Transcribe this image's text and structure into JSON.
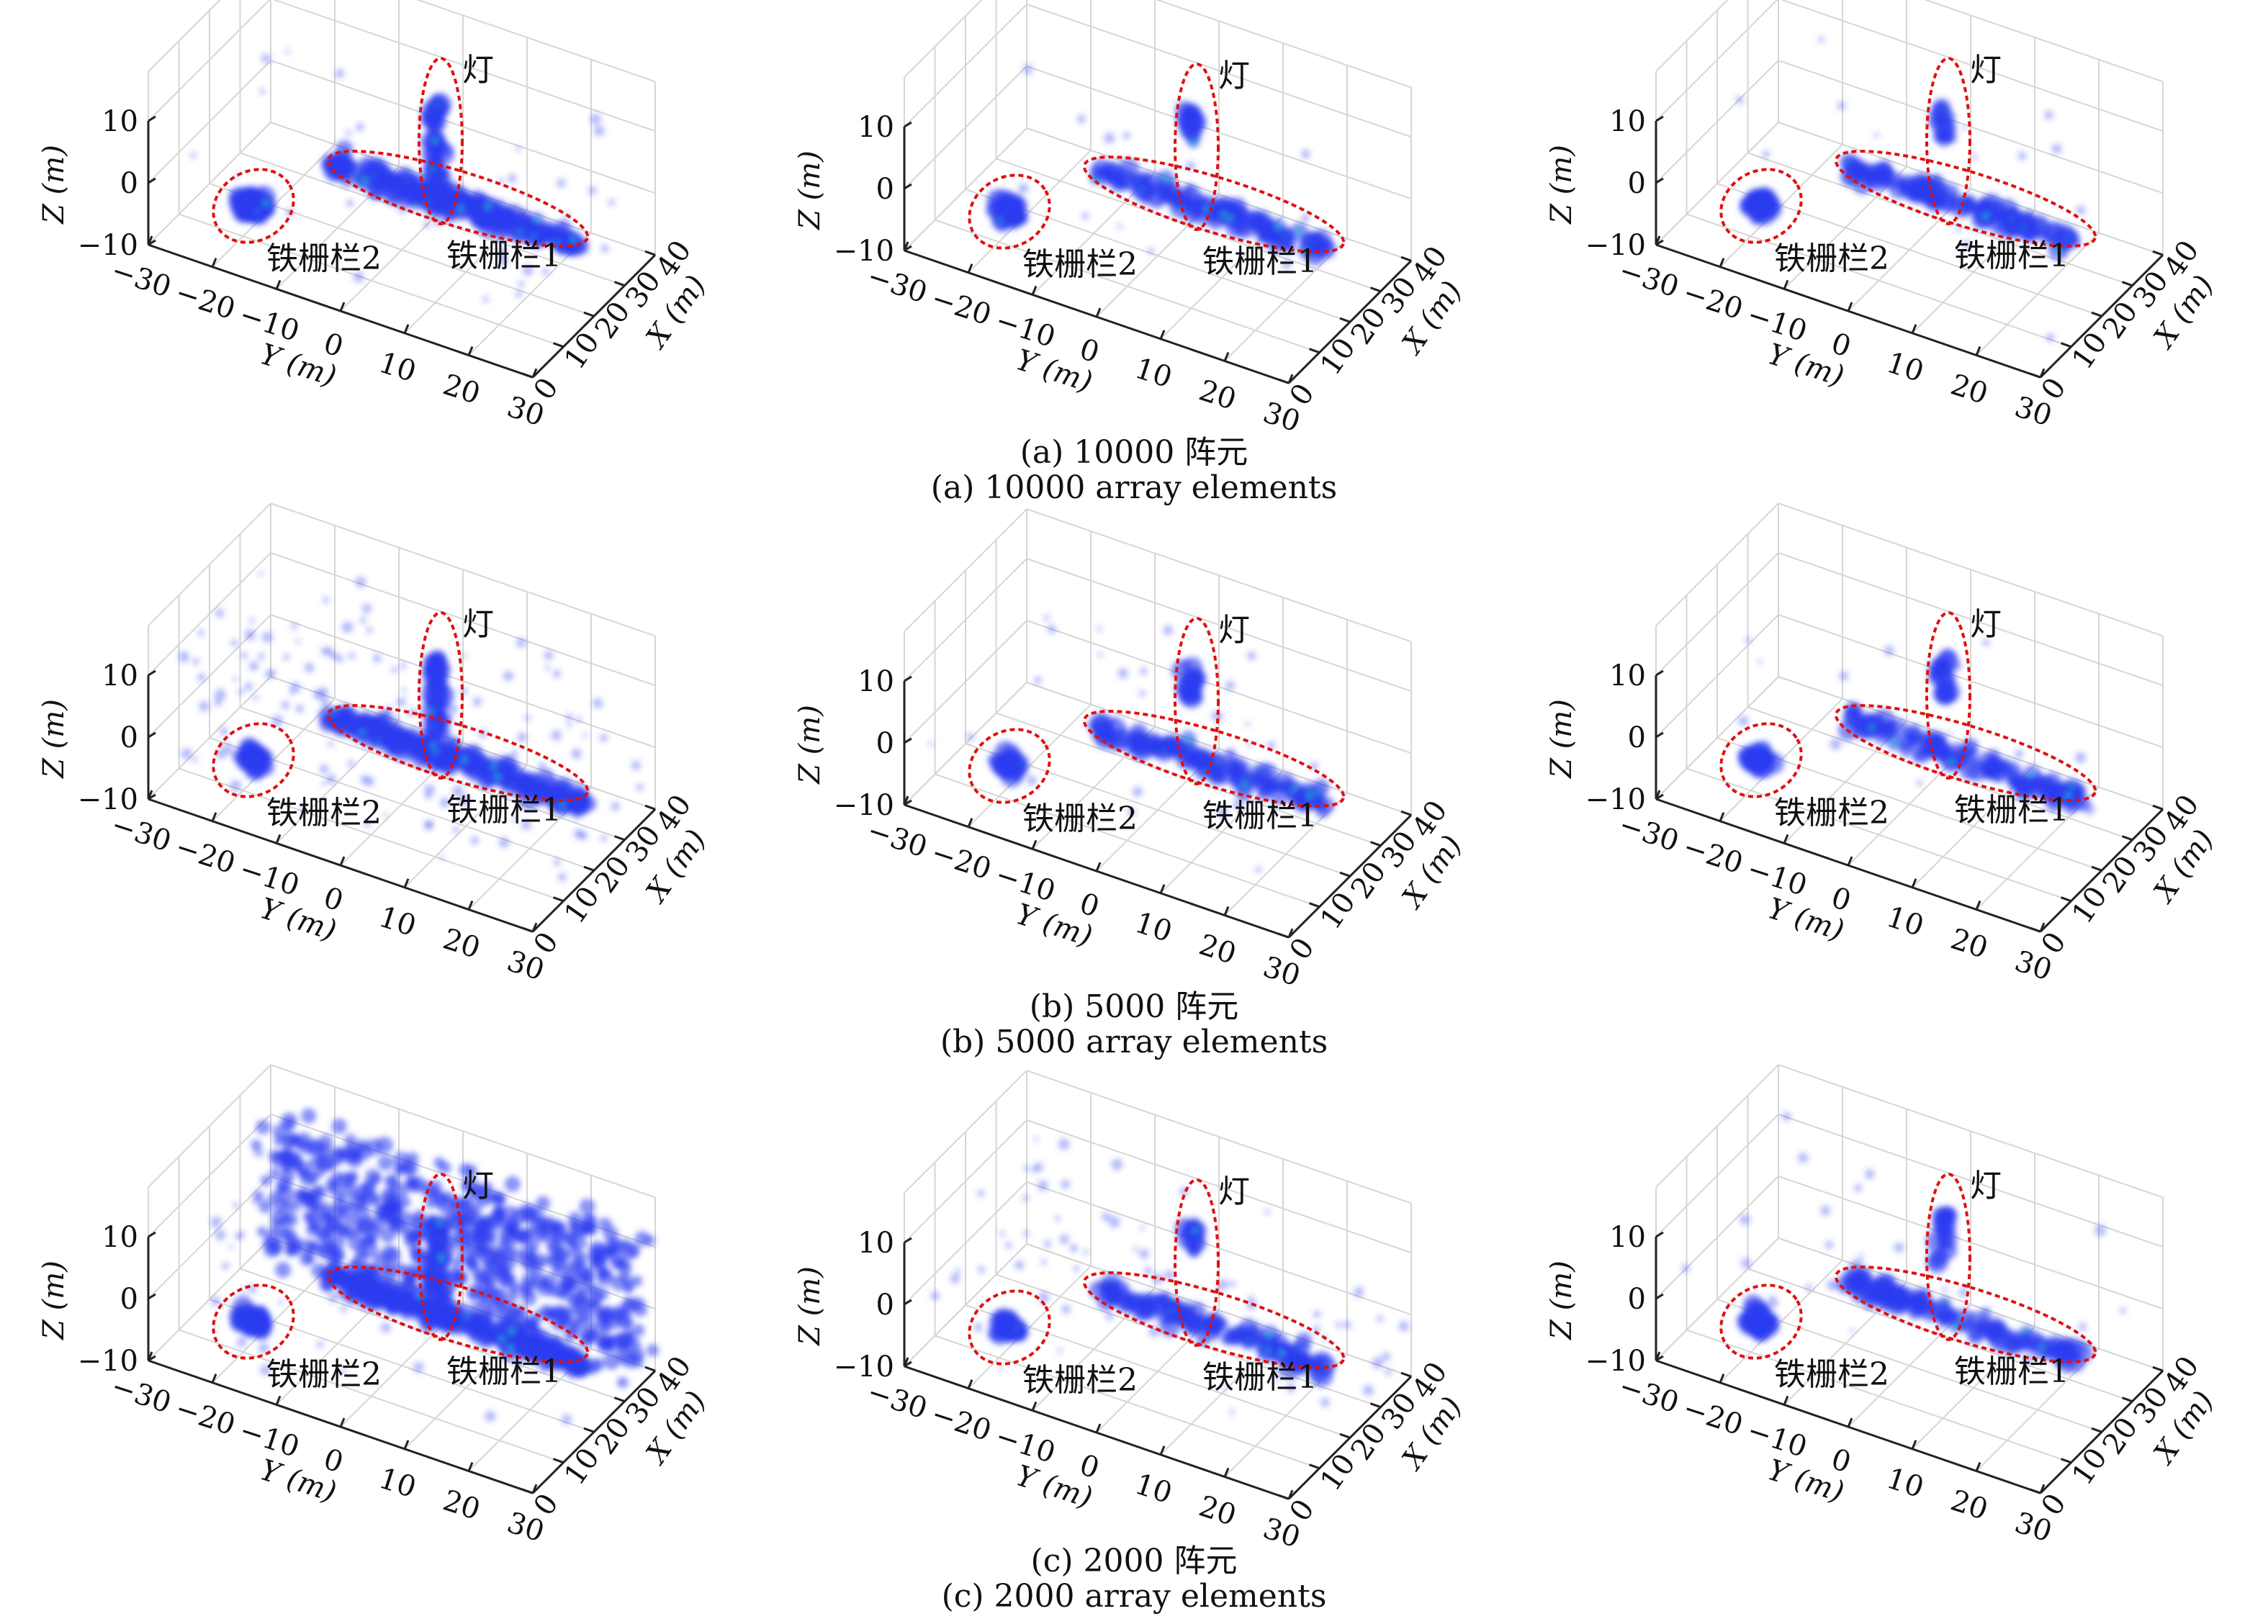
{
  "captions": [
    {
      "zh": "(a) 10000 阵元",
      "en": "(a) 10000 array elements"
    },
    {
      "zh": "(b) 5000 阵元",
      "en": "(b) 5000 array elements"
    },
    {
      "zh": "(c) 2000 阵元",
      "en": "(c) 2000 array elements"
    }
  ],
  "colors": {
    "points": "#2b3cf0",
    "core": "#22b4c8",
    "annotation": "#e01010",
    "grid": "#d6d6d6"
  },
  "axes": {
    "xlabel": "X (m)",
    "ylabel": "Y (m)",
    "zlabel": "Z (m)",
    "x_ticks": [
      0,
      10,
      20,
      30,
      40
    ],
    "y_ticks": [
      -30,
      -20,
      -10,
      0,
      10,
      20,
      30
    ],
    "z_ticks": [
      -10,
      0,
      10
    ],
    "xlim": [
      0,
      40
    ],
    "ylim": [
      -30,
      30
    ],
    "zlim": [
      -10,
      10
    ]
  },
  "annotations": {
    "lamp": "灯",
    "fence2": "铁栅栏2",
    "fence1": "铁栅栏1"
  },
  "chart_data": [
    {
      "type": "scatter3d",
      "row": "a",
      "clutter": 40,
      "wall": 0,
      "clusters": [
        {
          "target": "fence2",
          "y": -19,
          "x": 11,
          "z": -5,
          "spread": 2.5,
          "count": 60
        },
        {
          "target": "fence1",
          "y": 6,
          "x": 25,
          "z": -3,
          "spread": 20,
          "count": 200
        },
        {
          "target": "lamp",
          "y": 2,
          "x": 27,
          "z": 5,
          "spread": 6,
          "count": 40
        }
      ]
    },
    {
      "type": "scatter3d",
      "row": "a",
      "clutter": 15,
      "wall": 0,
      "clusters": [
        {
          "target": "fence2",
          "y": -19,
          "x": 11,
          "z": -5,
          "spread": 2.5,
          "count": 50
        },
        {
          "target": "fence1",
          "y": 6,
          "x": 25,
          "z": -3,
          "spread": 18,
          "count": 110
        },
        {
          "target": "lamp",
          "y": 2,
          "x": 27,
          "z": 8,
          "spread": 3,
          "count": 15
        }
      ]
    },
    {
      "type": "scatter3d",
      "row": "a",
      "clutter": 15,
      "wall": 0,
      "clusters": [
        {
          "target": "fence2",
          "y": -19,
          "x": 11,
          "z": -5,
          "spread": 2.5,
          "count": 50
        },
        {
          "target": "fence1",
          "y": 6,
          "x": 25,
          "z": -3,
          "spread": 18,
          "count": 110
        },
        {
          "target": "lamp",
          "y": 2,
          "x": 27,
          "z": 8,
          "spread": 3,
          "count": 15
        }
      ]
    },
    {
      "type": "scatter3d",
      "row": "b",
      "clutter": 140,
      "wall": 0,
      "clusters": [
        {
          "target": "fence2",
          "y": -19,
          "x": 11,
          "z": -5,
          "spread": 2.5,
          "count": 60
        },
        {
          "target": "fence1",
          "y": 6,
          "x": 25,
          "z": -3,
          "spread": 20,
          "count": 220
        },
        {
          "target": "lamp",
          "y": 2,
          "x": 27,
          "z": 5,
          "spread": 6,
          "count": 50
        }
      ]
    },
    {
      "type": "scatter3d",
      "row": "b",
      "clutter": 30,
      "wall": 0,
      "clusters": [
        {
          "target": "fence2",
          "y": -19,
          "x": 11,
          "z": -5,
          "spread": 2.5,
          "count": 50
        },
        {
          "target": "fence1",
          "y": 6,
          "x": 25,
          "z": -3,
          "spread": 18,
          "count": 110
        },
        {
          "target": "lamp",
          "y": 2,
          "x": 27,
          "z": 8,
          "spread": 3,
          "count": 15
        }
      ]
    },
    {
      "type": "scatter3d",
      "row": "b",
      "clutter": 15,
      "wall": 0,
      "clusters": [
        {
          "target": "fence2",
          "y": -19,
          "x": 11,
          "z": -5,
          "spread": 2.5,
          "count": 50
        },
        {
          "target": "fence1",
          "y": 6,
          "x": 25,
          "z": -3,
          "spread": 18,
          "count": 110
        },
        {
          "target": "lamp",
          "y": 2,
          "x": 27,
          "z": 8,
          "spread": 3,
          "count": 15
        }
      ]
    },
    {
      "type": "scatter3d",
      "row": "c",
      "clutter": 60,
      "wall": 600,
      "clusters": [
        {
          "target": "fence2",
          "y": -19,
          "x": 11,
          "z": -5,
          "spread": 2.5,
          "count": 60
        },
        {
          "target": "fence1",
          "y": 6,
          "x": 25,
          "z": -3,
          "spread": 20,
          "count": 220
        },
        {
          "target": "lamp",
          "y": 2,
          "x": 27,
          "z": 5,
          "spread": 6,
          "count": 40
        }
      ]
    },
    {
      "type": "scatter3d",
      "row": "c",
      "clutter": 70,
      "wall": 0,
      "clusters": [
        {
          "target": "fence2",
          "y": -19,
          "x": 11,
          "z": -5,
          "spread": 2.5,
          "count": 50
        },
        {
          "target": "fence1",
          "y": 6,
          "x": 25,
          "z": -3,
          "spread": 18,
          "count": 110
        },
        {
          "target": "lamp",
          "y": 2,
          "x": 27,
          "z": 8,
          "spread": 3,
          "count": 15
        }
      ]
    },
    {
      "type": "scatter3d",
      "row": "c",
      "clutter": 30,
      "wall": 0,
      "clusters": [
        {
          "target": "fence2",
          "y": -19,
          "x": 11,
          "z": -5,
          "spread": 2.5,
          "count": 50
        },
        {
          "target": "fence1",
          "y": 6,
          "x": 25,
          "z": -3,
          "spread": 18,
          "count": 110
        },
        {
          "target": "lamp",
          "y": 2,
          "x": 27,
          "z": 8,
          "spread": 4,
          "count": 20
        }
      ]
    }
  ]
}
